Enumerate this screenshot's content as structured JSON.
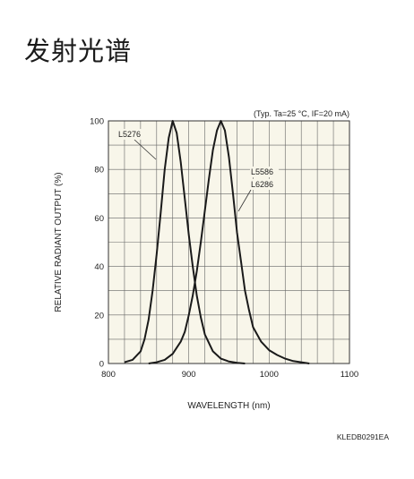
{
  "page": {
    "heading": "发射光谱",
    "figure_code": "KLEDB0291EA"
  },
  "chart_data": {
    "type": "line",
    "condition_note": "(Typ. Ta=25 °C, IF=20 mA)",
    "xlabel": "WAVELENGTH (nm)",
    "ylabel": "RELATIVE RADIANT OUTPUT (%)",
    "xlim": [
      800,
      1100
    ],
    "ylim": [
      0,
      100
    ],
    "x_tick_labels": [
      "800",
      "900",
      "1000",
      "1100"
    ],
    "y_tick_labels": [
      "0",
      "20",
      "40",
      "60",
      "80",
      "100"
    ],
    "x_grid_step": 20,
    "y_grid_step": 10,
    "grid": true,
    "background_color": "#f8f6ea",
    "series": [
      {
        "name": "L5276",
        "x": [
          820,
          830,
          840,
          845,
          850,
          855,
          860,
          865,
          870,
          875,
          880,
          885,
          890,
          895,
          900,
          905,
          910,
          915,
          920,
          930,
          940,
          950,
          960,
          970
        ],
        "y": [
          0.5,
          1.5,
          5,
          10,
          18,
          30,
          45,
          62,
          80,
          93,
          100,
          95,
          83,
          68,
          53,
          40,
          28,
          19,
          12,
          5,
          2,
          0.8,
          0.3,
          0
        ]
      },
      {
        "name": "L5586 / L6286",
        "x": [
          850,
          860,
          870,
          880,
          890,
          895,
          900,
          905,
          910,
          915,
          920,
          925,
          930,
          935,
          940,
          945,
          950,
          955,
          960,
          965,
          970,
          975,
          980,
          990,
          1000,
          1010,
          1020,
          1030,
          1040,
          1050
        ],
        "y": [
          0,
          0.5,
          1.5,
          4,
          9,
          13,
          20,
          28,
          38,
          50,
          63,
          76,
          88,
          96,
          100,
          96,
          85,
          70,
          54,
          42,
          30,
          22,
          15,
          9,
          5.5,
          3.5,
          2,
          1,
          0.5,
          0
        ]
      }
    ],
    "annotations": [
      "L5276",
      "L5586",
      "L6286"
    ]
  }
}
